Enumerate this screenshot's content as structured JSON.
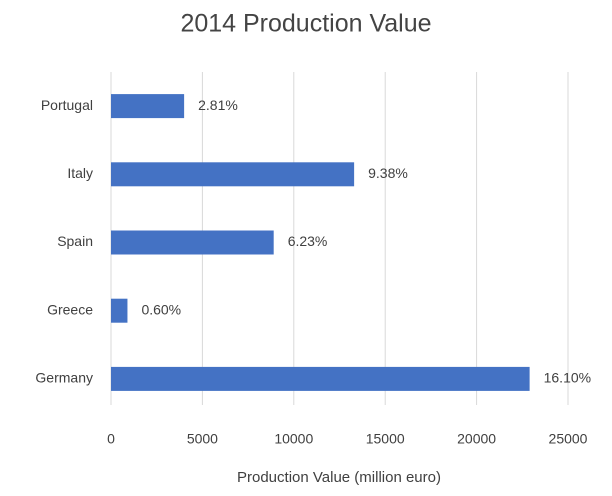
{
  "chart_data": {
    "type": "barh",
    "title": "2014 Production Value",
    "x_label": "Production Value (million euro)",
    "categories": [
      "Portugal",
      "Italy",
      "Spain",
      "Greece",
      "Germany"
    ],
    "values": [
      4000,
      13300,
      8900,
      900,
      22900
    ],
    "share_labels": [
      "2.81%",
      "9.38%",
      "6.23%",
      "0.60%",
      "16.10%"
    ],
    "color": "#4472c4",
    "xlim": [
      0,
      25000
    ],
    "xticks": [
      0,
      5000,
      10000,
      15000,
      20000,
      25000
    ],
    "grid": true
  }
}
